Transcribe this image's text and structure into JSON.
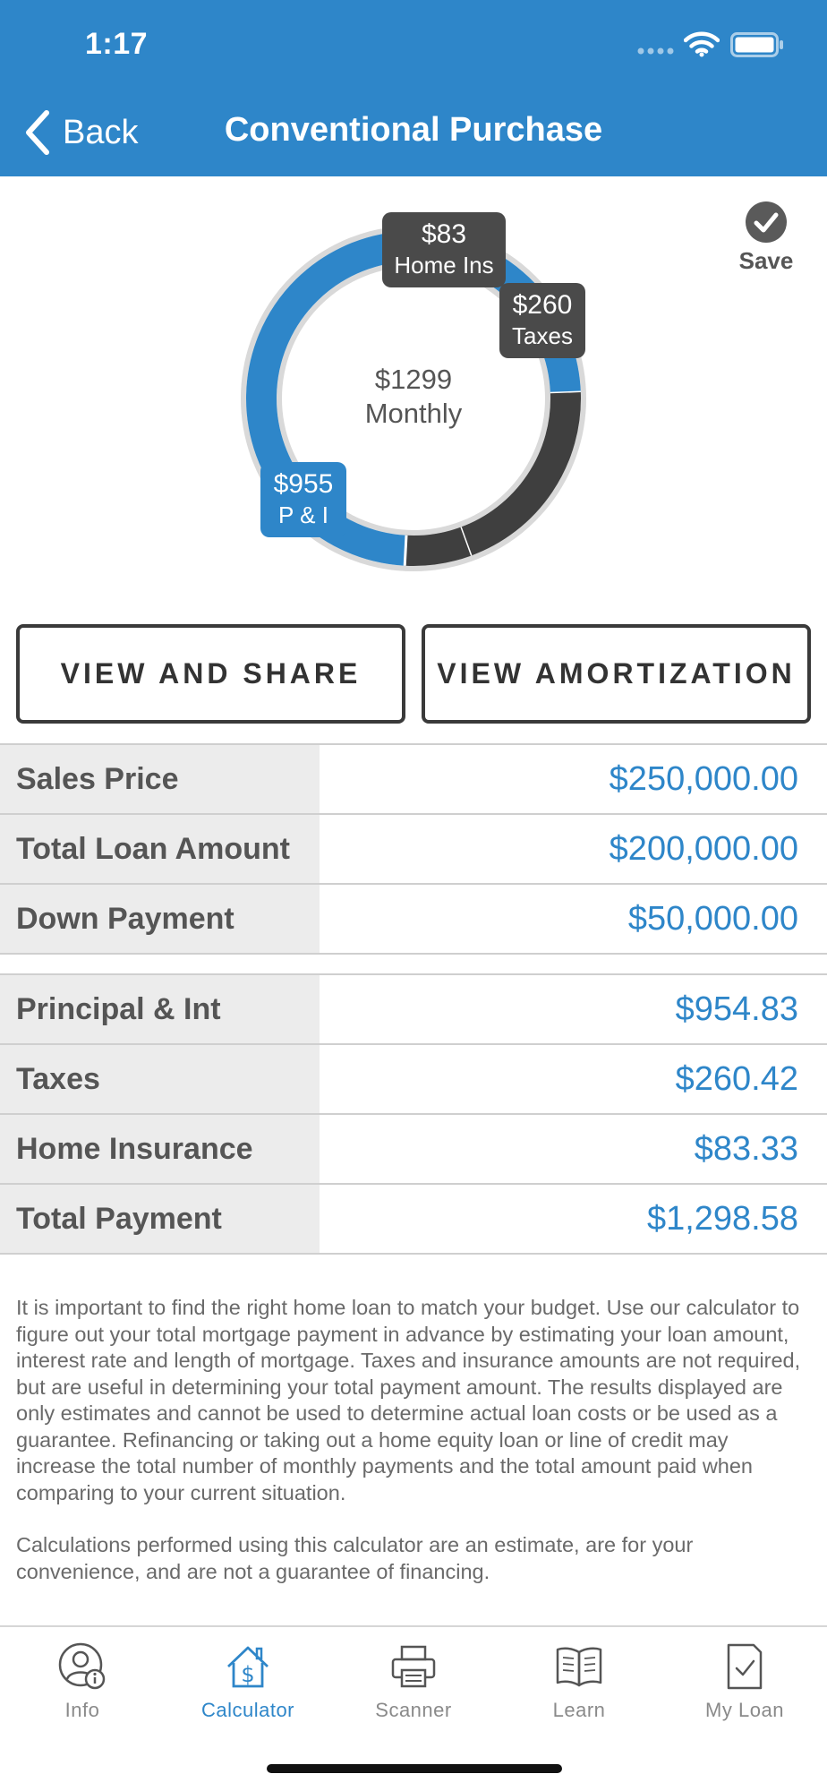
{
  "status_bar": {
    "time": "1:17"
  },
  "nav": {
    "back_label": "Back",
    "title": "Conventional Purchase"
  },
  "save": {
    "label": "Save"
  },
  "chart": {
    "center_amount": "$1299",
    "center_label": "Monthly",
    "labels": {
      "home_ins": {
        "amount": "$83",
        "label": "Home Ins"
      },
      "taxes": {
        "amount": "$260",
        "label": "Taxes"
      },
      "pi": {
        "amount": "$955",
        "label": "P & I"
      }
    },
    "colors": {
      "pi": "#2e86c9",
      "taxes": "#3f3f3f",
      "home_ins": "#3f3f3f"
    }
  },
  "chart_data": {
    "type": "pie",
    "categories": [
      "P & I",
      "Taxes",
      "Home Ins"
    ],
    "values": [
      955,
      260,
      83
    ],
    "title": "",
    "center_text": "$1299 Monthly"
  },
  "buttons": {
    "view_share": "VIEW AND SHARE",
    "view_amortization": "VIEW AMORTIZATION"
  },
  "loan_table": [
    {
      "label": "Sales Price",
      "value": "$250,000.00"
    },
    {
      "label": "Total Loan Amount",
      "value": "$200,000.00"
    },
    {
      "label": "Down Payment",
      "value": "$50,000.00"
    }
  ],
  "payment_table": [
    {
      "label": "Principal & Int",
      "value": "$954.83"
    },
    {
      "label": "Taxes",
      "value": "$260.42"
    },
    {
      "label": "Home Insurance",
      "value": "$83.33"
    },
    {
      "label": "Total Payment",
      "value": "$1,298.58"
    }
  ],
  "disclaimer": {
    "p1": "It is important to find the right home loan to match your budget. Use our calculator to figure out your total mortgage payment in advance by estimating your loan amount, interest rate and length of mortgage. Taxes and insurance amounts are not required, but are useful in determining your total payment amount.  The results displayed are only estimates and cannot be used to determine actual loan costs or be used as a guarantee. Refinancing or taking out a home equity loan or line of credit may increase the total number of monthly payments and the total amount paid when comparing to your current situation.",
    "p2": "Calculations performed using this calculator are an estimate, are for your convenience, and are not a guarantee of financing."
  },
  "tabs": [
    {
      "label": "Info",
      "icon": "user-info-icon"
    },
    {
      "label": "Calculator",
      "icon": "house-dollar-icon",
      "active": true
    },
    {
      "label": "Scanner",
      "icon": "printer-icon"
    },
    {
      "label": "Learn",
      "icon": "book-icon"
    },
    {
      "label": "My Loan",
      "icon": "document-check-icon"
    }
  ]
}
